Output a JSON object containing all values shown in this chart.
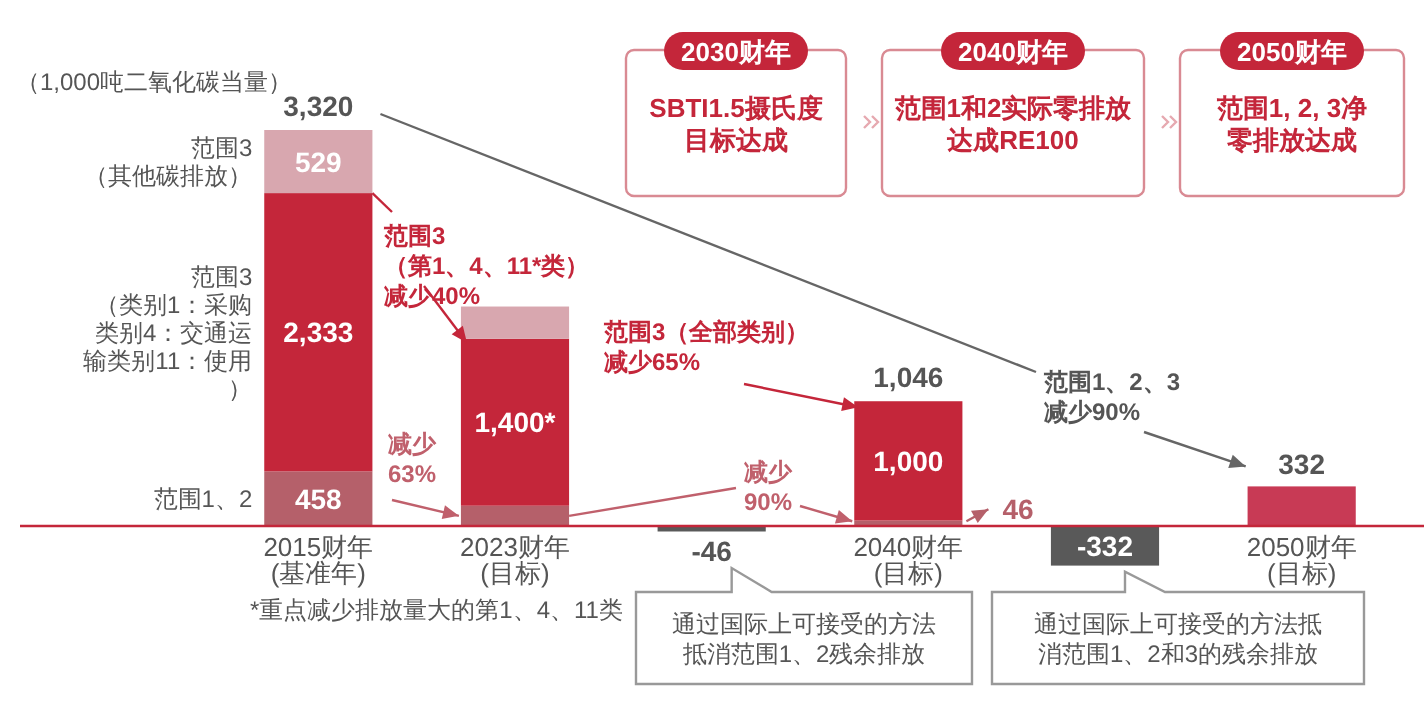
{
  "chart_data": {
    "type": "bar",
    "stacked": true,
    "categories": [
      "2015财年(基准年)",
      "2023财年(目标)",
      null,
      "2040财年(目标)",
      null,
      "2050财年(目标)"
    ],
    "series": [
      {
        "name": "范围1、2",
        "color": "#b5606a",
        "values": [
          458,
          170,
          null,
          46,
          null,
          null
        ],
        "value_labels": [
          "458",
          null,
          null,
          "46",
          null,
          null
        ]
      },
      {
        "name": "范围3（类别1：采购类别4：交通运输类别11：使用）",
        "color": "#c4263a",
        "values": [
          2333,
          1400,
          null,
          1000,
          null,
          null
        ],
        "value_labels": [
          "2,333",
          "1,400*",
          null,
          "1,000",
          null,
          null
        ]
      },
      {
        "name": "范围3（其他碳排放）",
        "color": "#d8a7af",
        "values": [
          529,
          270,
          null,
          null,
          null,
          null
        ],
        "value_labels": [
          "529",
          null,
          null,
          null,
          null,
          null
        ]
      },
      {
        "color": "#c83a55",
        "values": [
          null,
          null,
          null,
          null,
          null,
          332
        ],
        "value_labels": [
          null,
          null,
          null,
          null,
          null,
          "332"
        ]
      },
      {
        "color": "#595959",
        "values": [
          null,
          null,
          -46,
          null,
          -332,
          null
        ],
        "value_labels": [
          null,
          null,
          "-46",
          null,
          "-332",
          null
        ]
      }
    ],
    "totals": [
      "3,320",
      null,
      null,
      "1,046",
      null,
      null
    ],
    "annotations": [
      "（1,000吨二氧化碳当量）",
      "范围3（第1、4、11*类）减少40%",
      "范围3（全部类别）减少65%",
      "减少63%",
      "减少90%",
      "范围1、2、3减少90%",
      "*重点减少排放量大的第1、4、11类",
      "2030财年",
      "SBTI1.5摄氏度目标达成",
      "2040财年",
      "范围1和2实际零排放达成RE100",
      "2050财年",
      "范围1, 2, 3净零排放达成",
      "通过国际上可接受的方法抵消范围1、2残余排放",
      "通过国际上可接受的方法抵消范围1、2和3的残余排放"
    ]
  }
}
